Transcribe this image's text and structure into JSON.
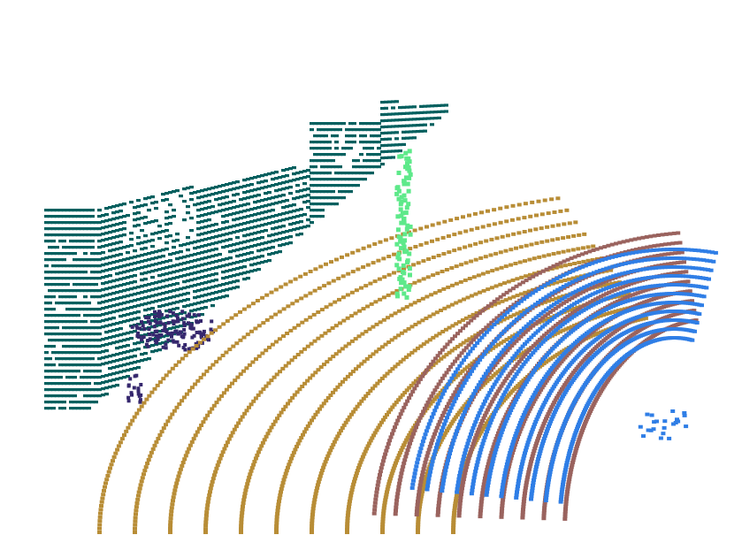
{
  "scene": {
    "description_kind": "lidar-point-cloud-segmentation",
    "background": "#ffffff",
    "classes": [
      {
        "id": "building",
        "color": "#04605f"
      },
      {
        "id": "road",
        "color": "#b88d36"
      },
      {
        "id": "sidewalk",
        "color": "#9a635e"
      },
      {
        "id": "terrain",
        "color": "#2f7ee6"
      },
      {
        "id": "pole",
        "color": "#5ee98a"
      },
      {
        "id": "vegetation",
        "color": "#36286e"
      }
    ]
  }
}
